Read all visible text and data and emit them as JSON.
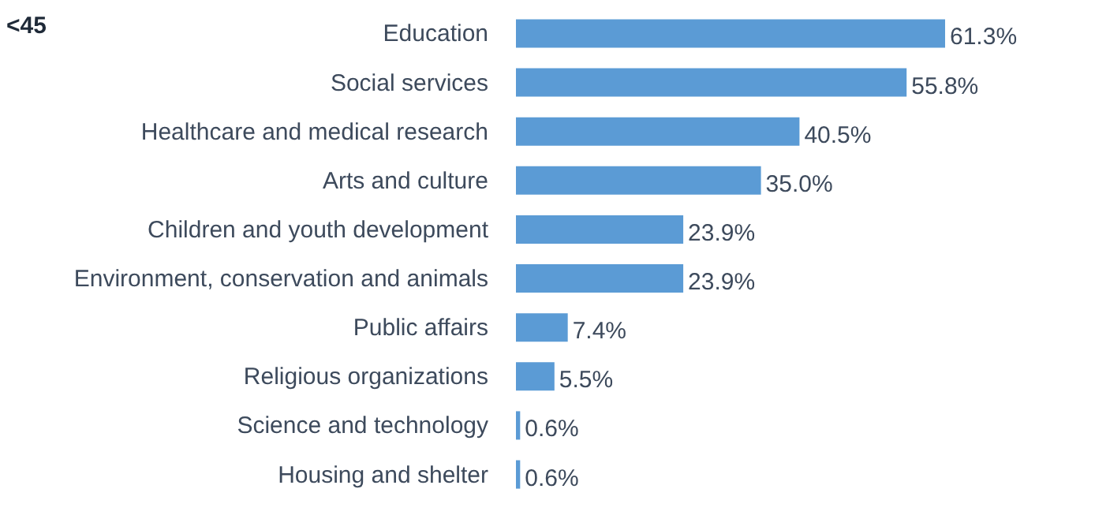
{
  "chart_data": {
    "type": "bar",
    "orientation": "horizontal",
    "title": "<45",
    "categories": [
      "Education",
      "Social services",
      "Healthcare and medical research",
      "Arts and culture",
      "Children and youth development",
      "Environment, conservation and animals",
      "Public affairs",
      "Religious organizations",
      "Science and technology",
      "Housing and shelter"
    ],
    "values": [
      61.3,
      55.8,
      40.5,
      35.0,
      23.9,
      23.9,
      7.4,
      5.5,
      0.6,
      0.6
    ],
    "value_labels": [
      "61.3%",
      "55.8%",
      "40.5%",
      "35.0%",
      "23.9%",
      "23.9%",
      "7.4%",
      "5.5%",
      "0.6%",
      "0.6%"
    ],
    "color": "#5b9bd5",
    "tick_labels": "y"
  }
}
